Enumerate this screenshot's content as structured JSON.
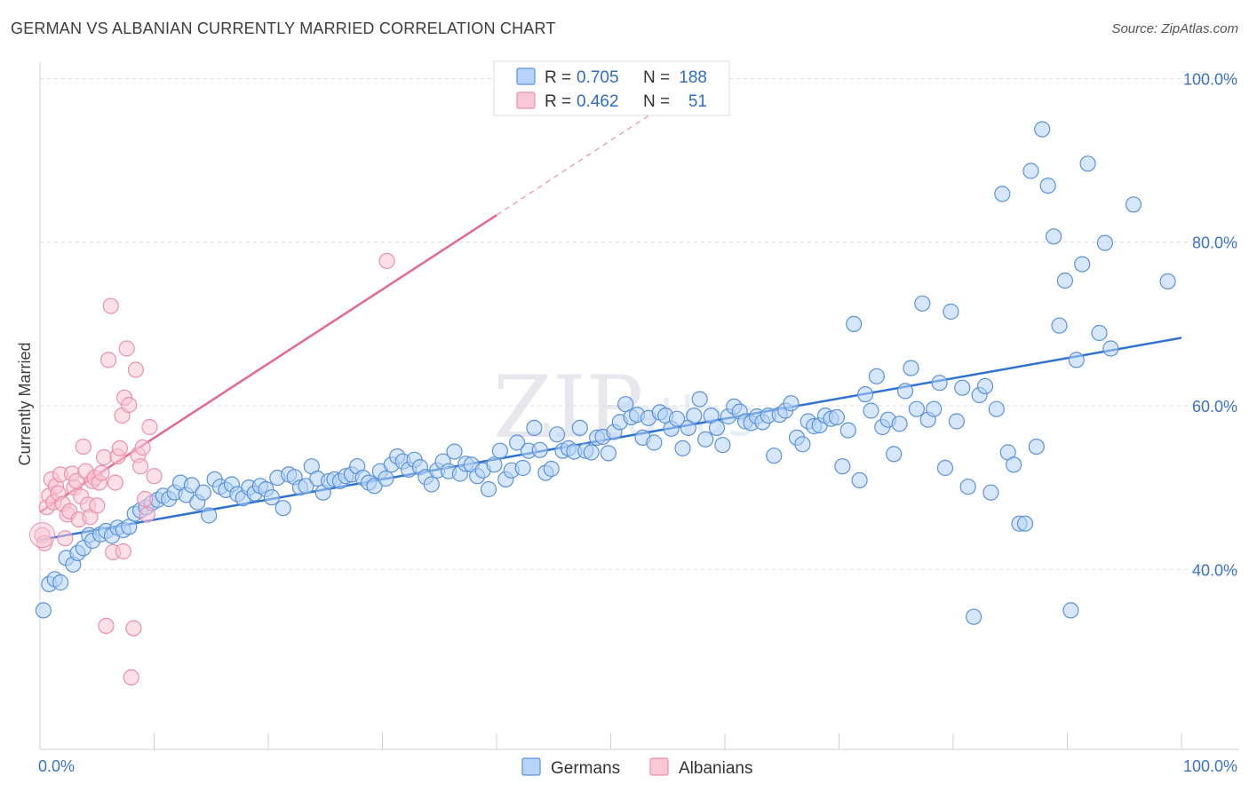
{
  "title": "GERMAN VS ALBANIAN CURRENTLY MARRIED CORRELATION CHART",
  "source": "Source: ZipAtlas.com",
  "colors": {
    "germans_fill": "#b7d3f7",
    "germans_stroke": "#5b92d9",
    "germans_line": "#2e72d2",
    "albanians_fill": "#f9c7d6",
    "albanians_stroke": "#ec8fad",
    "albanians_line": "#e4688f",
    "grid": "#dddddd",
    "tick_label": "#3a72c7"
  },
  "legend": {
    "r_label": "R =",
    "n_label": "N =",
    "rows": [
      {
        "name": "Germans",
        "r": "0.705",
        "n": "188"
      },
      {
        "name": "Albanians",
        "r": "0.462",
        "n": "51"
      }
    ]
  },
  "watermark": {
    "zip": "ZIP",
    "atlas": "atlas"
  },
  "chart_data": {
    "type": "scatter",
    "title": "GERMAN VS ALBANIAN CURRENTLY MARRIED CORRELATION CHART",
    "xlabel": "",
    "ylabel": "Currently Married",
    "xlim": [
      0,
      100
    ],
    "ylim": [
      18,
      102
    ],
    "x_tick_labels": [
      "0.0%",
      "100.0%"
    ],
    "y_ticks": [
      40,
      60,
      80,
      100
    ],
    "y_tick_labels": [
      "40.0%",
      "60.0%",
      "80.0%",
      "100.0%"
    ],
    "legend_position": "bottom-center",
    "series": [
      {
        "name": "Germans",
        "r": 0.705,
        "n": 188,
        "trend": {
          "x0": 0,
          "y0": 43.6,
          "x1": 100,
          "y1": 68.3
        },
        "points": [
          [
            0.3,
            35
          ],
          [
            0.8,
            38.2
          ],
          [
            1.3,
            38.8
          ],
          [
            1.8,
            38.4
          ],
          [
            2.3,
            41.4
          ],
          [
            2.9,
            40.6
          ],
          [
            3.3,
            42
          ],
          [
            3.8,
            42.6
          ],
          [
            4.3,
            44.2
          ],
          [
            4.6,
            43.5
          ],
          [
            5.3,
            44.3
          ],
          [
            5.8,
            44.7
          ],
          [
            6.3,
            44.1
          ],
          [
            6.8,
            45.1
          ],
          [
            7.3,
            44.8
          ],
          [
            7.8,
            45.2
          ],
          [
            8.3,
            46.8
          ],
          [
            8.8,
            47.2
          ],
          [
            9.3,
            47.6
          ],
          [
            9.8,
            48.1
          ],
          [
            10.3,
            48.5
          ],
          [
            10.8,
            49
          ],
          [
            11.3,
            48.6
          ],
          [
            11.8,
            49.4
          ],
          [
            12.3,
            50.6
          ],
          [
            12.8,
            49.1
          ],
          [
            13.3,
            50.3
          ],
          [
            13.8,
            48.2
          ],
          [
            14.3,
            49.4
          ],
          [
            14.8,
            46.6
          ],
          [
            15.3,
            51
          ],
          [
            15.8,
            50.1
          ],
          [
            16.3,
            49.7
          ],
          [
            16.8,
            50.4
          ],
          [
            17.3,
            49.2
          ],
          [
            17.8,
            48.7
          ],
          [
            18.3,
            50
          ],
          [
            18.8,
            49.3
          ],
          [
            19.3,
            50.2
          ],
          [
            19.8,
            49.8
          ],
          [
            20.3,
            48.8
          ],
          [
            20.8,
            51.2
          ],
          [
            21.3,
            47.5
          ],
          [
            21.8,
            51.6
          ],
          [
            22.3,
            51.3
          ],
          [
            22.8,
            50
          ],
          [
            23.3,
            50.2
          ],
          [
            23.8,
            52.6
          ],
          [
            24.3,
            51.1
          ],
          [
            24.8,
            49.4
          ],
          [
            25.3,
            50.8
          ],
          [
            25.8,
            51
          ],
          [
            26.3,
            50.8
          ],
          [
            26.8,
            51.4
          ],
          [
            27.3,
            51.6
          ],
          [
            27.8,
            52.6
          ],
          [
            28.3,
            51.2
          ],
          [
            28.8,
            50.6
          ],
          [
            29.3,
            50.2
          ],
          [
            29.8,
            52
          ],
          [
            30.3,
            51.1
          ],
          [
            30.8,
            52.8
          ],
          [
            31.3,
            53.8
          ],
          [
            31.8,
            53.2
          ],
          [
            32.3,
            52.2
          ],
          [
            32.8,
            53.4
          ],
          [
            33.3,
            52.5
          ],
          [
            33.8,
            51.3
          ],
          [
            34.3,
            50.4
          ],
          [
            34.8,
            52.1
          ],
          [
            35.3,
            53.2
          ],
          [
            35.8,
            52
          ],
          [
            36.3,
            54.4
          ],
          [
            36.8,
            51.7
          ],
          [
            37.3,
            52.9
          ],
          [
            37.8,
            52.8
          ],
          [
            38.3,
            51.4
          ],
          [
            38.8,
            52.1
          ],
          [
            39.3,
            49.8
          ],
          [
            39.8,
            52.8
          ],
          [
            40.3,
            54.5
          ],
          [
            40.8,
            51
          ],
          [
            41.3,
            52.1
          ],
          [
            41.8,
            55.5
          ],
          [
            42.3,
            52.4
          ],
          [
            42.8,
            54.5
          ],
          [
            43.3,
            57.3
          ],
          [
            43.8,
            54.6
          ],
          [
            44.3,
            51.8
          ],
          [
            44.8,
            52.3
          ],
          [
            45.3,
            56.5
          ],
          [
            45.8,
            54.5
          ],
          [
            46.3,
            54.8
          ],
          [
            46.8,
            54.4
          ],
          [
            47.3,
            57.3
          ],
          [
            47.8,
            54.5
          ],
          [
            48.3,
            54.3
          ],
          [
            48.8,
            56.1
          ],
          [
            49.3,
            56.2
          ],
          [
            49.8,
            54.2
          ],
          [
            50.3,
            56.8
          ],
          [
            50.8,
            58
          ],
          [
            51.3,
            60.2
          ],
          [
            51.8,
            58.6
          ],
          [
            52.3,
            58.9
          ],
          [
            52.8,
            56.1
          ],
          [
            53.3,
            58.5
          ],
          [
            53.8,
            55.5
          ],
          [
            54.3,
            59.2
          ],
          [
            54.8,
            58.8
          ],
          [
            55.3,
            57.2
          ],
          [
            55.8,
            58.4
          ],
          [
            56.3,
            54.8
          ],
          [
            56.8,
            57.3
          ],
          [
            57.3,
            58.8
          ],
          [
            57.8,
            60.8
          ],
          [
            58.3,
            55.9
          ],
          [
            58.8,
            58.8
          ],
          [
            59.3,
            57.3
          ],
          [
            59.8,
            55.2
          ],
          [
            60.3,
            58.7
          ],
          [
            60.8,
            59.9
          ],
          [
            61.3,
            59.3
          ],
          [
            61.8,
            58.1
          ],
          [
            62.3,
            57.9
          ],
          [
            62.8,
            58.7
          ],
          [
            63.3,
            58
          ],
          [
            63.8,
            58.8
          ],
          [
            64.3,
            53.9
          ],
          [
            64.8,
            58.9
          ],
          [
            65.3,
            59.4
          ],
          [
            65.8,
            60.3
          ],
          [
            66.3,
            56.1
          ],
          [
            66.8,
            55.3
          ],
          [
            67.3,
            58.1
          ],
          [
            67.8,
            57.5
          ],
          [
            68.3,
            57.6
          ],
          [
            68.8,
            58.8
          ],
          [
            69.3,
            58.4
          ],
          [
            69.8,
            58.6
          ],
          [
            70.3,
            52.6
          ],
          [
            70.8,
            57
          ],
          [
            71.3,
            70
          ],
          [
            71.8,
            50.9
          ],
          [
            72.3,
            61.4
          ],
          [
            72.8,
            59.4
          ],
          [
            73.3,
            63.6
          ],
          [
            73.8,
            57.4
          ],
          [
            74.3,
            58.3
          ],
          [
            74.8,
            54.1
          ],
          [
            75.3,
            57.8
          ],
          [
            75.8,
            61.8
          ],
          [
            76.3,
            64.6
          ],
          [
            76.8,
            59.6
          ],
          [
            77.3,
            72.5
          ],
          [
            77.8,
            58.3
          ],
          [
            78.3,
            59.6
          ],
          [
            78.8,
            62.8
          ],
          [
            79.3,
            52.4
          ],
          [
            79.8,
            71.5
          ],
          [
            80.3,
            58.1
          ],
          [
            80.8,
            62.2
          ],
          [
            81.3,
            50.1
          ],
          [
            81.8,
            34.2
          ],
          [
            82.3,
            61.3
          ],
          [
            82.8,
            62.4
          ],
          [
            83.3,
            49.4
          ],
          [
            83.8,
            59.6
          ],
          [
            84.3,
            85.9
          ],
          [
            84.8,
            54.3
          ],
          [
            85.3,
            52.8
          ],
          [
            85.8,
            45.6
          ],
          [
            86.3,
            45.6
          ],
          [
            86.8,
            88.7
          ],
          [
            87.3,
            55
          ],
          [
            87.8,
            93.8
          ],
          [
            88.3,
            86.9
          ],
          [
            88.8,
            80.7
          ],
          [
            89.3,
            69.8
          ],
          [
            89.8,
            75.3
          ],
          [
            90.3,
            35
          ],
          [
            90.8,
            65.6
          ],
          [
            91.3,
            77.3
          ],
          [
            91.8,
            89.6
          ],
          [
            92.8,
            68.9
          ],
          [
            93.3,
            79.9
          ],
          [
            93.8,
            67
          ],
          [
            95.8,
            84.6
          ],
          [
            98.8,
            75.2
          ]
        ]
      },
      {
        "name": "Albanians",
        "r": 0.462,
        "n": 51,
        "trend": {
          "x0": 0,
          "y0": 47,
          "x1": 40,
          "y1": 83.3,
          "dashed_to": {
            "x": 55,
            "y": 97
          }
        },
        "points": [
          [
            0.2,
            44.2
          ],
          [
            0.4,
            43.2
          ],
          [
            0.6,
            47.6
          ],
          [
            0.8,
            49
          ],
          [
            1,
            51
          ],
          [
            1.2,
            48.2
          ],
          [
            1.4,
            50.2
          ],
          [
            1.6,
            49.3
          ],
          [
            1.8,
            51.6
          ],
          [
            2,
            48
          ],
          [
            2.2,
            43.8
          ],
          [
            2.4,
            46.7
          ],
          [
            2.6,
            47.1
          ],
          [
            2.8,
            51.7
          ],
          [
            3,
            50
          ],
          [
            3.2,
            50.8
          ],
          [
            3.4,
            46.1
          ],
          [
            3.6,
            48.9
          ],
          [
            3.8,
            55
          ],
          [
            4,
            52
          ],
          [
            4.2,
            47.9
          ],
          [
            4.4,
            46.4
          ],
          [
            4.6,
            50.8
          ],
          [
            4.8,
            51.2
          ],
          [
            5,
            47.8
          ],
          [
            5.2,
            50.6
          ],
          [
            5.4,
            51.8
          ],
          [
            5.6,
            53.7
          ],
          [
            5.8,
            33.1
          ],
          [
            6,
            65.6
          ],
          [
            6.2,
            72.2
          ],
          [
            6.4,
            42.1
          ],
          [
            6.6,
            50.6
          ],
          [
            6.8,
            53.8
          ],
          [
            7,
            54.8
          ],
          [
            7.2,
            58.8
          ],
          [
            7.4,
            61
          ],
          [
            7.6,
            67
          ],
          [
            7.8,
            60.1
          ],
          [
            8,
            26.8
          ],
          [
            8.2,
            32.8
          ],
          [
            8.4,
            64.4
          ],
          [
            8.6,
            54
          ],
          [
            8.8,
            52.6
          ],
          [
            9,
            54.9
          ],
          [
            9.2,
            48.6
          ],
          [
            9.4,
            46.7
          ],
          [
            9.6,
            57.4
          ],
          [
            10,
            51.4
          ],
          [
            7.3,
            42.2
          ],
          [
            30.4,
            77.7
          ]
        ]
      }
    ]
  },
  "bottom_legend": [
    {
      "name": "Germans"
    },
    {
      "name": "Albanians"
    }
  ]
}
